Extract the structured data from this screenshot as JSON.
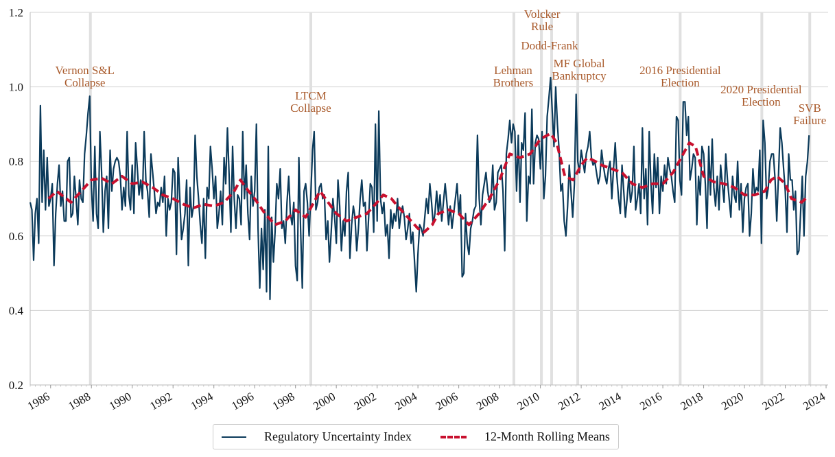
{
  "chart_data": {
    "type": "line",
    "title": "",
    "xlabel": "",
    "ylabel": "",
    "ylim": [
      0.2,
      1.2
    ],
    "xlim": [
      1985,
      2024
    ],
    "yticks": [
      "0.2",
      "0.4",
      "0.6",
      "0.8",
      "1.0",
      "1.2"
    ],
    "xticks": [
      "1986",
      "1988",
      "1990",
      "1992",
      "1994",
      "1996",
      "1998",
      "2000",
      "2002",
      "2004",
      "2006",
      "2008",
      "2010",
      "2012",
      "2014",
      "2016",
      "2018",
      "2020",
      "2022",
      "2024"
    ],
    "grid": "horizontal",
    "legend_placement": "bottom-center",
    "colors": {
      "index": "#0b3a5a",
      "rolling": "#c8102e",
      "event_line": "#e0e0e0",
      "annotation": "#a95a2b"
    },
    "series": [
      {
        "name": "Regulatory Uncertainty Index",
        "start_month": "1985-01",
        "frequency": "monthly",
        "values": [
          0.69,
          0.67,
          0.535,
          0.66,
          0.7,
          0.58,
          0.95,
          0.69,
          0.83,
          0.67,
          0.81,
          0.68,
          0.7,
          0.74,
          0.52,
          0.66,
          0.74,
          0.79,
          0.68,
          0.72,
          0.64,
          0.64,
          0.8,
          0.81,
          0.65,
          0.66,
          0.76,
          0.7,
          0.63,
          0.75,
          0.7,
          0.69,
          0.82,
          0.87,
          0.93,
          0.975,
          0.73,
          0.64,
          0.84,
          0.66,
          0.62,
          0.88,
          0.77,
          0.61,
          0.72,
          0.76,
          0.62,
          0.83,
          0.72,
          0.78,
          0.8,
          0.81,
          0.8,
          0.76,
          0.67,
          0.73,
          0.68,
          0.88,
          0.71,
          0.67,
          0.79,
          0.66,
          0.85,
          0.78,
          0.71,
          0.75,
          0.7,
          0.88,
          0.75,
          0.72,
          0.65,
          0.82,
          0.77,
          0.72,
          0.66,
          0.69,
          0.68,
          0.73,
          0.69,
          0.76,
          0.6,
          0.7,
          0.67,
          0.69,
          0.78,
          0.77,
          0.55,
          0.81,
          0.7,
          0.59,
          0.62,
          0.66,
          0.75,
          0.52,
          0.73,
          0.65,
          0.68,
          0.87,
          0.76,
          0.7,
          0.63,
          0.58,
          0.7,
          0.54,
          0.73,
          0.7,
          0.84,
          0.78,
          0.7,
          0.76,
          0.62,
          0.66,
          0.72,
          0.63,
          0.81,
          0.74,
          0.89,
          0.76,
          0.61,
          0.84,
          0.7,
          0.62,
          0.71,
          0.7,
          0.63,
          0.88,
          0.7,
          0.79,
          0.66,
          0.59,
          0.76,
          0.68,
          0.72,
          0.9,
          0.62,
          0.46,
          0.62,
          0.51,
          0.67,
          0.45,
          0.84,
          0.43,
          0.65,
          0.53,
          0.61,
          0.74,
          0.7,
          0.78,
          0.62,
          0.64,
          0.58,
          0.69,
          0.76,
          0.66,
          0.63,
          0.69,
          0.52,
          0.48,
          0.81,
          0.62,
          0.46,
          0.72,
          0.74,
          0.69,
          0.6,
          0.71,
          0.83,
          0.88,
          0.67,
          0.69,
          0.73,
          0.74,
          0.7,
          0.71,
          0.59,
          0.64,
          0.53,
          0.61,
          0.7,
          0.65,
          0.58,
          0.75,
          0.68,
          0.56,
          0.64,
          0.6,
          0.72,
          0.77,
          0.54,
          0.63,
          0.68,
          0.65,
          0.56,
          0.62,
          0.7,
          0.75,
          0.68,
          0.69,
          0.56,
          0.65,
          0.74,
          0.73,
          0.61,
          0.9,
          0.64,
          0.935,
          0.7,
          0.66,
          0.69,
          0.6,
          0.63,
          0.54,
          0.67,
          0.62,
          0.66,
          0.64,
          0.7,
          0.62,
          0.66,
          0.68,
          0.65,
          0.59,
          0.62,
          0.66,
          0.58,
          0.61,
          0.53,
          0.45,
          0.55,
          0.63,
          0.62,
          0.6,
          0.65,
          0.7,
          0.66,
          0.74,
          0.69,
          0.63,
          0.66,
          0.72,
          0.66,
          0.71,
          0.64,
          0.69,
          0.74,
          0.69,
          0.63,
          0.68,
          0.62,
          0.66,
          0.7,
          0.74,
          0.66,
          0.71,
          0.49,
          0.5,
          0.66,
          0.58,
          0.55,
          0.62,
          0.64,
          0.67,
          0.68,
          0.87,
          0.7,
          0.63,
          0.71,
          0.74,
          0.77,
          0.72,
          0.69,
          0.7,
          0.79,
          0.67,
          0.69,
          0.77,
          0.78,
          0.79,
          0.72,
          0.56,
          0.82,
          0.86,
          0.91,
          0.85,
          0.9,
          0.88,
          0.72,
          0.87,
          0.69,
          0.85,
          0.83,
          0.93,
          0.64,
          0.76,
          0.74,
          0.94,
          0.74,
          0.85,
          0.87,
          0.86,
          0.78,
          0.88,
          0.7,
          0.76,
          0.92,
          0.97,
          1.025,
          0.93,
          0.84,
          1.0,
          0.9,
          0.83,
          0.72,
          0.74,
          0.64,
          0.6,
          0.68,
          0.79,
          0.72,
          0.65,
          0.74,
          0.98,
          0.8,
          0.77,
          0.83,
          0.8,
          0.77,
          0.82,
          0.84,
          0.88,
          0.81,
          0.79,
          0.8,
          0.77,
          0.74,
          0.76,
          0.83,
          0.79,
          0.76,
          0.74,
          0.78,
          0.8,
          0.7,
          0.78,
          0.85,
          0.76,
          0.7,
          0.66,
          0.79,
          0.72,
          0.65,
          0.7,
          0.76,
          0.69,
          0.72,
          0.84,
          0.67,
          0.7,
          0.74,
          0.66,
          0.89,
          0.7,
          0.78,
          0.63,
          0.88,
          0.74,
          0.66,
          0.82,
          0.73,
          0.81,
          0.66,
          0.76,
          0.72,
          0.79,
          0.74,
          0.81,
          0.78,
          0.76,
          0.72,
          0.69,
          0.92,
          0.91,
          0.75,
          0.71,
          0.96,
          0.96,
          0.87,
          0.92,
          0.75,
          0.78,
          0.82,
          0.81,
          0.63,
          0.76,
          0.71,
          0.84,
          0.82,
          0.74,
          0.62,
          0.84,
          0.71,
          0.86,
          0.73,
          0.68,
          0.76,
          0.67,
          0.79,
          0.74,
          0.69,
          0.82,
          0.75,
          0.7,
          0.65,
          0.76,
          0.71,
          0.69,
          0.8,
          0.67,
          0.74,
          0.61,
          0.7,
          0.73,
          0.74,
          0.6,
          0.66,
          0.78,
          0.71,
          0.73,
          0.72,
          0.83,
          0.58,
          0.91,
          0.85,
          0.7,
          0.73,
          0.8,
          0.82,
          0.82,
          0.75,
          0.64,
          0.76,
          0.89,
          0.85,
          0.78,
          0.72,
          0.61,
          0.82,
          0.75,
          0.75,
          0.67,
          0.72,
          0.55,
          0.56,
          0.66,
          0.76,
          0.6,
          0.76,
          0.8,
          0.87
        ]
      },
      {
        "name": "12-Month Rolling Means",
        "points": [
          [
            1985.9,
            0.7
          ],
          [
            1986.3,
            0.72
          ],
          [
            1987.0,
            0.69
          ],
          [
            1987.5,
            0.72
          ],
          [
            1988.0,
            0.75
          ],
          [
            1988.5,
            0.755
          ],
          [
            1989.0,
            0.74
          ],
          [
            1989.5,
            0.76
          ],
          [
            1990.0,
            0.74
          ],
          [
            1990.5,
            0.745
          ],
          [
            1991.0,
            0.73
          ],
          [
            1991.5,
            0.71
          ],
          [
            1992.0,
            0.7
          ],
          [
            1992.5,
            0.685
          ],
          [
            1993.0,
            0.675
          ],
          [
            1993.5,
            0.685
          ],
          [
            1994.0,
            0.68
          ],
          [
            1994.5,
            0.69
          ],
          [
            1995.0,
            0.72
          ],
          [
            1995.3,
            0.75
          ],
          [
            1995.7,
            0.72
          ],
          [
            1996.0,
            0.7
          ],
          [
            1996.5,
            0.66
          ],
          [
            1997.0,
            0.63
          ],
          [
            1997.5,
            0.64
          ],
          [
            1998.0,
            0.67
          ],
          [
            1998.5,
            0.65
          ],
          [
            1999.0,
            0.7
          ],
          [
            1999.2,
            0.72
          ],
          [
            1999.6,
            0.69
          ],
          [
            2000.0,
            0.66
          ],
          [
            2000.5,
            0.64
          ],
          [
            2001.0,
            0.65
          ],
          [
            2001.5,
            0.66
          ],
          [
            2002.0,
            0.69
          ],
          [
            2002.3,
            0.71
          ],
          [
            2002.7,
            0.7
          ],
          [
            2003.0,
            0.68
          ],
          [
            2003.5,
            0.65
          ],
          [
            2004.0,
            0.62
          ],
          [
            2004.3,
            0.61
          ],
          [
            2004.7,
            0.63
          ],
          [
            2005.0,
            0.66
          ],
          [
            2005.5,
            0.67
          ],
          [
            2006.0,
            0.66
          ],
          [
            2006.5,
            0.63
          ],
          [
            2007.0,
            0.66
          ],
          [
            2007.5,
            0.7
          ],
          [
            2008.0,
            0.75
          ],
          [
            2008.5,
            0.82
          ],
          [
            2009.0,
            0.81
          ],
          [
            2009.5,
            0.82
          ],
          [
            2010.0,
            0.86
          ],
          [
            2010.5,
            0.875
          ],
          [
            2010.8,
            0.85
          ],
          [
            2011.2,
            0.76
          ],
          [
            2011.6,
            0.75
          ],
          [
            2012.0,
            0.79
          ],
          [
            2012.3,
            0.81
          ],
          [
            2012.7,
            0.8
          ],
          [
            2013.0,
            0.79
          ],
          [
            2013.5,
            0.78
          ],
          [
            2014.0,
            0.77
          ],
          [
            2014.5,
            0.74
          ],
          [
            2015.0,
            0.73
          ],
          [
            2015.5,
            0.74
          ],
          [
            2016.0,
            0.74
          ],
          [
            2016.5,
            0.77
          ],
          [
            2017.0,
            0.82
          ],
          [
            2017.3,
            0.85
          ],
          [
            2017.6,
            0.84
          ],
          [
            2018.0,
            0.76
          ],
          [
            2018.5,
            0.745
          ],
          [
            2019.0,
            0.74
          ],
          [
            2019.5,
            0.73
          ],
          [
            2020.0,
            0.71
          ],
          [
            2020.5,
            0.71
          ],
          [
            2021.0,
            0.72
          ],
          [
            2021.3,
            0.75
          ],
          [
            2021.6,
            0.76
          ],
          [
            2022.0,
            0.74
          ],
          [
            2022.3,
            0.7
          ],
          [
            2022.8,
            0.69
          ],
          [
            2023.0,
            0.7
          ]
        ]
      }
    ],
    "events": [
      {
        "date": 1987.95,
        "label": [
          "Vernon S&L",
          "Collapse"
        ]
      },
      {
        "date": 1998.75,
        "label": [
          "LTCM",
          "Collapse"
        ]
      },
      {
        "date": 2008.7,
        "label": [
          "Lehman",
          "Brothers"
        ]
      },
      {
        "date": 2010.05,
        "label": [
          "Volcker",
          "Rule"
        ]
      },
      {
        "date": 2010.55,
        "label": [
          "Dodd-Frank"
        ]
      },
      {
        "date": 2011.83,
        "label": [
          "MF Global",
          "Bankruptcy"
        ]
      },
      {
        "date": 2016.85,
        "label": [
          "2016 Presidential",
          "Election"
        ]
      },
      {
        "date": 2020.85,
        "label": [
          "2020 Presidential",
          "Election"
        ]
      },
      {
        "date": 2023.2,
        "label": [
          "SVB",
          "Failure"
        ]
      }
    ]
  },
  "legend": {
    "index_label": "Regulatory Uncertainty Index",
    "rolling_label": "12-Month Rolling Means"
  }
}
